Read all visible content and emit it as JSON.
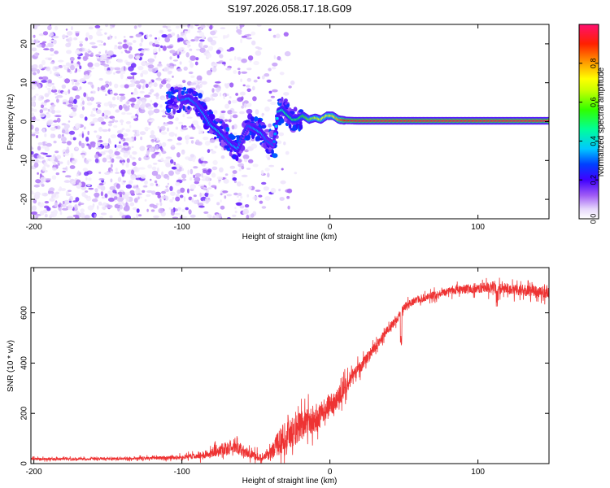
{
  "title": "S197.2026.058.17.18.G09",
  "chart_data": [
    {
      "type": "heatmap",
      "name": "spectrogram",
      "xlabel": "Height of straight line (km)",
      "ylabel": "Frequency (Hz)",
      "xlim": [
        -202,
        148
      ],
      "ylim": [
        -25,
        25
      ],
      "xticks": [
        -200,
        -100,
        0,
        100
      ],
      "yticks": [
        -20,
        -10,
        0,
        10,
        20
      ],
      "colorbar": {
        "label": "Normalized spectral amplitude",
        "range": [
          0,
          1
        ],
        "ticks": [
          0.0,
          0.2,
          0.4,
          0.6,
          0.8
        ],
        "colors": [
          "#ffffff",
          "#d9c6f5",
          "#9a4cf2",
          "#5a00ff",
          "#0033ff",
          "#00c8ff",
          "#00ff80",
          "#66ff00",
          "#ffff00",
          "#ffa000",
          "#ff2000",
          "#ff1070"
        ]
      },
      "ridge": {
        "x": [
          -100,
          -95,
          -90,
          -85,
          -80,
          -75,
          -70,
          -66,
          -62,
          -58,
          -55,
          -50,
          -46,
          -42,
          -38,
          -35,
          -32,
          -28,
          -25,
          -22,
          -18,
          -14,
          -10,
          -6,
          -2,
          2,
          6,
          10,
          20,
          40,
          60,
          80,
          100,
          120,
          148
        ],
        "freq": [
          5.5,
          6,
          4.5,
          2,
          -1,
          -2.5,
          -4.5,
          -6,
          -7,
          -3,
          -1,
          -2,
          -3,
          -5,
          -6,
          2.5,
          3,
          1.5,
          0.5,
          0.5,
          1.5,
          0.5,
          1,
          0.5,
          1.5,
          1.5,
          0.5,
          0.3,
          0.2,
          0.2,
          0.2,
          0.2,
          0.2,
          0.2,
          0.2
        ],
        "amplitude": [
          0.3,
          0.35,
          0.3,
          0.35,
          0.35,
          0.4,
          0.3,
          0.35,
          0.35,
          0.25,
          0.3,
          0.35,
          0.35,
          0.3,
          0.3,
          0.4,
          0.45,
          0.5,
          0.5,
          0.5,
          0.55,
          0.6,
          0.65,
          0.7,
          0.7,
          0.7,
          0.8,
          0.9,
          0.95,
          0.95,
          0.95,
          0.95,
          0.95,
          0.95,
          0.95
        ]
      }
    },
    {
      "type": "line",
      "name": "snr",
      "xlabel": "Height of straight line (km)",
      "ylabel": "SNR (10 * v/v)",
      "xlim": [
        -202,
        148
      ],
      "ylim": [
        0,
        780
      ],
      "xticks": [
        -200,
        -100,
        0,
        100
      ],
      "yticks": [
        0,
        200,
        400,
        600
      ],
      "color": "#ee3333",
      "x": [
        -202,
        -180,
        -160,
        -140,
        -120,
        -100,
        -90,
        -80,
        -75,
        -70,
        -65,
        -60,
        -55,
        -50,
        -45,
        -40,
        -35,
        -30,
        -25,
        -20,
        -15,
        -10,
        -5,
        0,
        5,
        10,
        15,
        20,
        25,
        30,
        35,
        40,
        45,
        48,
        50,
        55,
        60,
        70,
        80,
        90,
        100,
        110,
        120,
        130,
        140,
        148
      ],
      "values": [
        18,
        18,
        19,
        20,
        22,
        25,
        30,
        40,
        55,
        60,
        70,
        55,
        40,
        30,
        25,
        35,
        80,
        110,
        130,
        150,
        165,
        180,
        200,
        230,
        260,
        300,
        340,
        380,
        420,
        460,
        500,
        540,
        575,
        600,
        625,
        640,
        655,
        670,
        685,
        695,
        700,
        700,
        695,
        690,
        685,
        680
      ],
      "noise": [
        5,
        5,
        5,
        5,
        6,
        8,
        12,
        18,
        22,
        25,
        28,
        25,
        20,
        18,
        18,
        30,
        50,
        60,
        60,
        60,
        55,
        55,
        50,
        45,
        40,
        35,
        30,
        25,
        22,
        20,
        18,
        18,
        18,
        15,
        15,
        15,
        15,
        15,
        15,
        18,
        20,
        22,
        22,
        22,
        22,
        22
      ]
    }
  ]
}
